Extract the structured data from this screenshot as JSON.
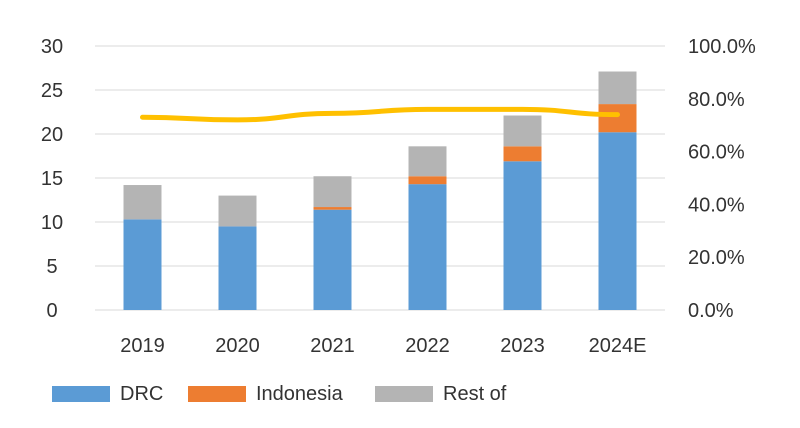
{
  "chart_data": {
    "type": "bar",
    "stacked": true,
    "categories": [
      "2019",
      "2020",
      "2021",
      "2022",
      "2023",
      "2024E"
    ],
    "series": [
      {
        "name": "DRC",
        "color": "#5b9bd5",
        "values": [
          10.3,
          9.5,
          11.4,
          14.3,
          16.9,
          20.2
        ]
      },
      {
        "name": "Indonesia",
        "color": "#ed7d31",
        "values": [
          0.0,
          0.0,
          0.3,
          0.9,
          1.7,
          3.2
        ]
      },
      {
        "name": "Rest of",
        "color": "#b4b4b4",
        "values": [
          3.9,
          3.5,
          3.5,
          3.4,
          3.5,
          3.7
        ]
      }
    ],
    "line_series": {
      "color": "#ffc000",
      "axis": "right",
      "values": [
        73.0,
        72.0,
        74.5,
        76.0,
        76.0,
        74.0
      ]
    },
    "y_left": {
      "min": 0,
      "max": 30,
      "ticks": [
        "0",
        "5",
        "10",
        "15",
        "20",
        "25",
        "30"
      ]
    },
    "y_right": {
      "min": 0,
      "max": 100,
      "ticks": [
        "0.0%",
        "20.0%",
        "40.0%",
        "60.0%",
        "80.0%",
        "100.0%"
      ]
    },
    "grid": true,
    "legend_position": "bottom"
  }
}
